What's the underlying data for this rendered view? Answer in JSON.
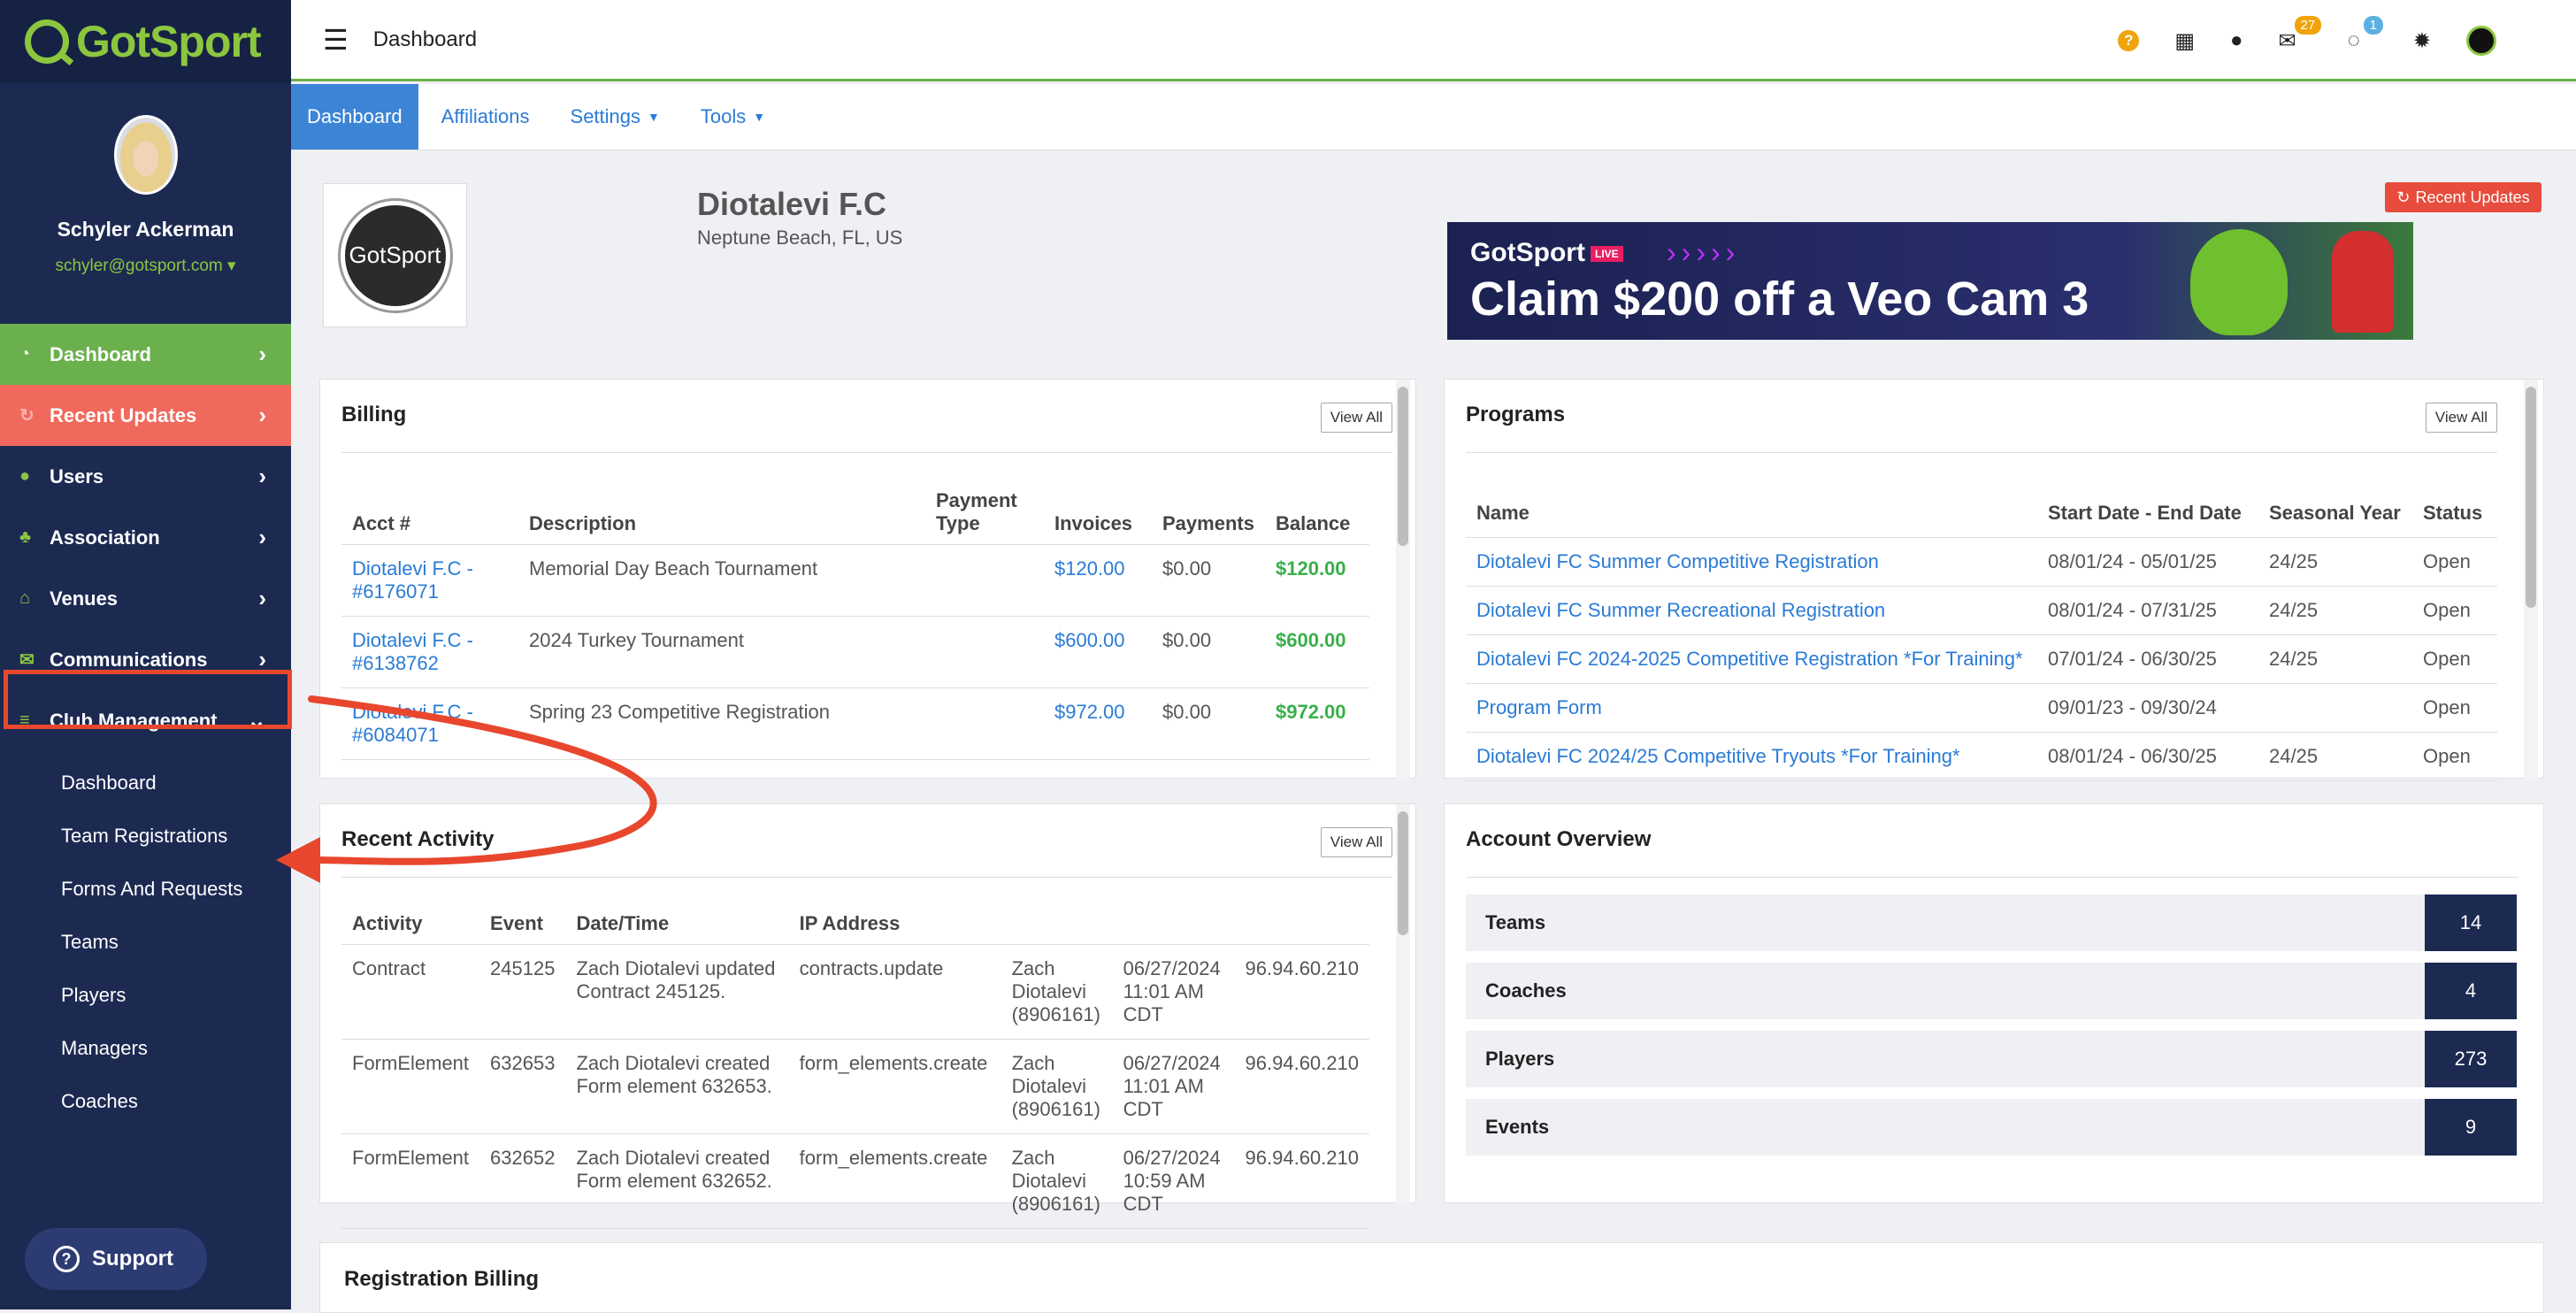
{
  "brand": {
    "name": "GotSport"
  },
  "user": {
    "name": "Schyler Ackerman",
    "email": "schyler@gotsport.com ▾"
  },
  "sidebar": {
    "items": [
      {
        "label": "Dashboard"
      },
      {
        "label": "Recent Updates"
      },
      {
        "label": "Users"
      },
      {
        "label": "Association"
      },
      {
        "label": "Venues"
      },
      {
        "label": "Communications"
      },
      {
        "label": "Club Management"
      }
    ],
    "sub_items": [
      {
        "label": "Dashboard"
      },
      {
        "label": "Team Registrations"
      },
      {
        "label": "Forms And Requests"
      },
      {
        "label": "Teams"
      },
      {
        "label": "Players"
      },
      {
        "label": "Managers"
      },
      {
        "label": "Coaches"
      }
    ],
    "support_label": "Support"
  },
  "topbar": {
    "title": "Dashboard",
    "mail_badge": "27",
    "chat_badge": "1",
    "help": "?"
  },
  "tabs": [
    {
      "label": "Dashboard"
    },
    {
      "label": "Affiliations"
    },
    {
      "label": "Settings"
    },
    {
      "label": "Tools"
    }
  ],
  "club": {
    "name": "Diotalevi F.C",
    "location": "Neptune Beach, FL, US",
    "logo_text": "GotSport",
    "recent_updates_button": "Recent Updates"
  },
  "banner": {
    "brand": "GotSport",
    "live": "LIVE",
    "arrows": "›››››",
    "headline": "Claim $200 off a Veo Cam 3"
  },
  "billing": {
    "title": "Billing",
    "view_all": "View All",
    "headers": [
      "Acct #",
      "Description",
      "Payment Type",
      "Invoices",
      "Payments",
      "Balance"
    ],
    "rows": [
      {
        "acct": "Diotalevi F.C - #6176071",
        "desc": "Memorial Day Beach Tournament",
        "type": "",
        "invoices": "$120.00",
        "payments": "$0.00",
        "balance": "$120.00"
      },
      {
        "acct": "Diotalevi F.C - #6138762",
        "desc": "2024 Turkey Tournament",
        "type": "",
        "invoices": "$600.00",
        "payments": "$0.00",
        "balance": "$600.00"
      },
      {
        "acct": "Diotalevi F.C - #6084071",
        "desc": "Spring 23 Competitive Registration",
        "type": "",
        "invoices": "$972.00",
        "payments": "$0.00",
        "balance": "$972.00"
      }
    ]
  },
  "programs": {
    "title": "Programs",
    "view_all": "View All",
    "headers": [
      "Name",
      "Start Date - End Date",
      "Seasonal Year",
      "Status"
    ],
    "rows": [
      {
        "name": "Diotalevi FC Summer Competitive Registration",
        "dates": "08/01/24 - 05/01/25",
        "year": "24/25",
        "status": "Open"
      },
      {
        "name": "Diotalevi FC Summer Recreational Registration",
        "dates": "08/01/24 - 07/31/25",
        "year": "24/25",
        "status": "Open"
      },
      {
        "name": "Diotalevi FC 2024-2025 Competitive Registration *For Training*",
        "dates": "07/01/24 - 06/30/25",
        "year": "24/25",
        "status": "Open"
      },
      {
        "name": "Program Form",
        "dates": "09/01/23 - 09/30/24",
        "year": "",
        "status": "Open"
      },
      {
        "name": "Diotalevi FC 2024/25 Competitive Tryouts *For Training*",
        "dates": "08/01/24 - 06/30/25",
        "year": "24/25",
        "status": "Open"
      }
    ]
  },
  "activity": {
    "title": "Recent Activity",
    "view_all": "View All",
    "headers": [
      "Activity",
      "Event",
      "Date/Time",
      "IP Address"
    ],
    "rows": [
      {
        "activity": "Contract",
        "event": "245125",
        "desc": "Zach Diotalevi updated Contract 245125.",
        "action": "contracts.update",
        "user": "Zach Diotalevi (8906161)",
        "datetime": "06/27/2024 11:01 AM CDT",
        "ip": "96.94.60.210"
      },
      {
        "activity": "FormElement",
        "event": "632653",
        "desc": "Zach Diotalevi created Form element 632653.",
        "action": "form_elements.create",
        "user": "Zach Diotalevi (8906161)",
        "datetime": "06/27/2024 11:01 AM CDT",
        "ip": "96.94.60.210"
      },
      {
        "activity": "FormElement",
        "event": "632652",
        "desc": "Zach Diotalevi created Form element 632652.",
        "action": "form_elements.create",
        "user": "Zach Diotalevi (8906161)",
        "datetime": "06/27/2024 10:59 AM CDT",
        "ip": "96.94.60.210"
      }
    ]
  },
  "overview": {
    "title": "Account Overview",
    "rows": [
      {
        "label": "Teams",
        "count": "14"
      },
      {
        "label": "Coaches",
        "count": "4"
      },
      {
        "label": "Players",
        "count": "273"
      },
      {
        "label": "Events",
        "count": "9"
      }
    ]
  },
  "registration_billing": {
    "title": "Registration Billing"
  },
  "colors": {
    "accent_green": "#6ab04c",
    "sidebar": "#1c2a52",
    "alert_red": "#e8472d",
    "link_blue": "#2a7bd6"
  }
}
